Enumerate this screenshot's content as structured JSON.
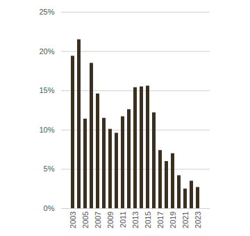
{
  "chart_data": {
    "type": "bar",
    "categories": [
      "2003",
      null,
      "2005",
      null,
      "2007",
      null,
      "2009",
      null,
      "2011",
      null,
      "2013",
      null,
      "2015",
      null,
      "2017",
      null,
      "2019",
      null,
      "2021",
      null,
      "2023"
    ],
    "values": [
      19.4,
      21.5,
      11.4,
      18.5,
      14.6,
      11.5,
      10.1,
      9.6,
      11.7,
      12.6,
      15.4,
      15.5,
      15.6,
      12.2,
      7.4,
      6.0,
      7.0,
      4.2,
      2.5,
      3.5,
      2.7
    ],
    "color": "#3b2f20",
    "ylim": [
      0,
      25
    ],
    "yticks": [
      {
        "value": 0,
        "label": "0%"
      },
      {
        "value": 5,
        "label": "5%"
      },
      {
        "value": 10,
        "label": "10%"
      },
      {
        "value": 15,
        "label": "15%"
      },
      {
        "value": 20,
        "label": "20%"
      },
      {
        "value": 25,
        "label": "25%"
      }
    ],
    "grid": true
  }
}
